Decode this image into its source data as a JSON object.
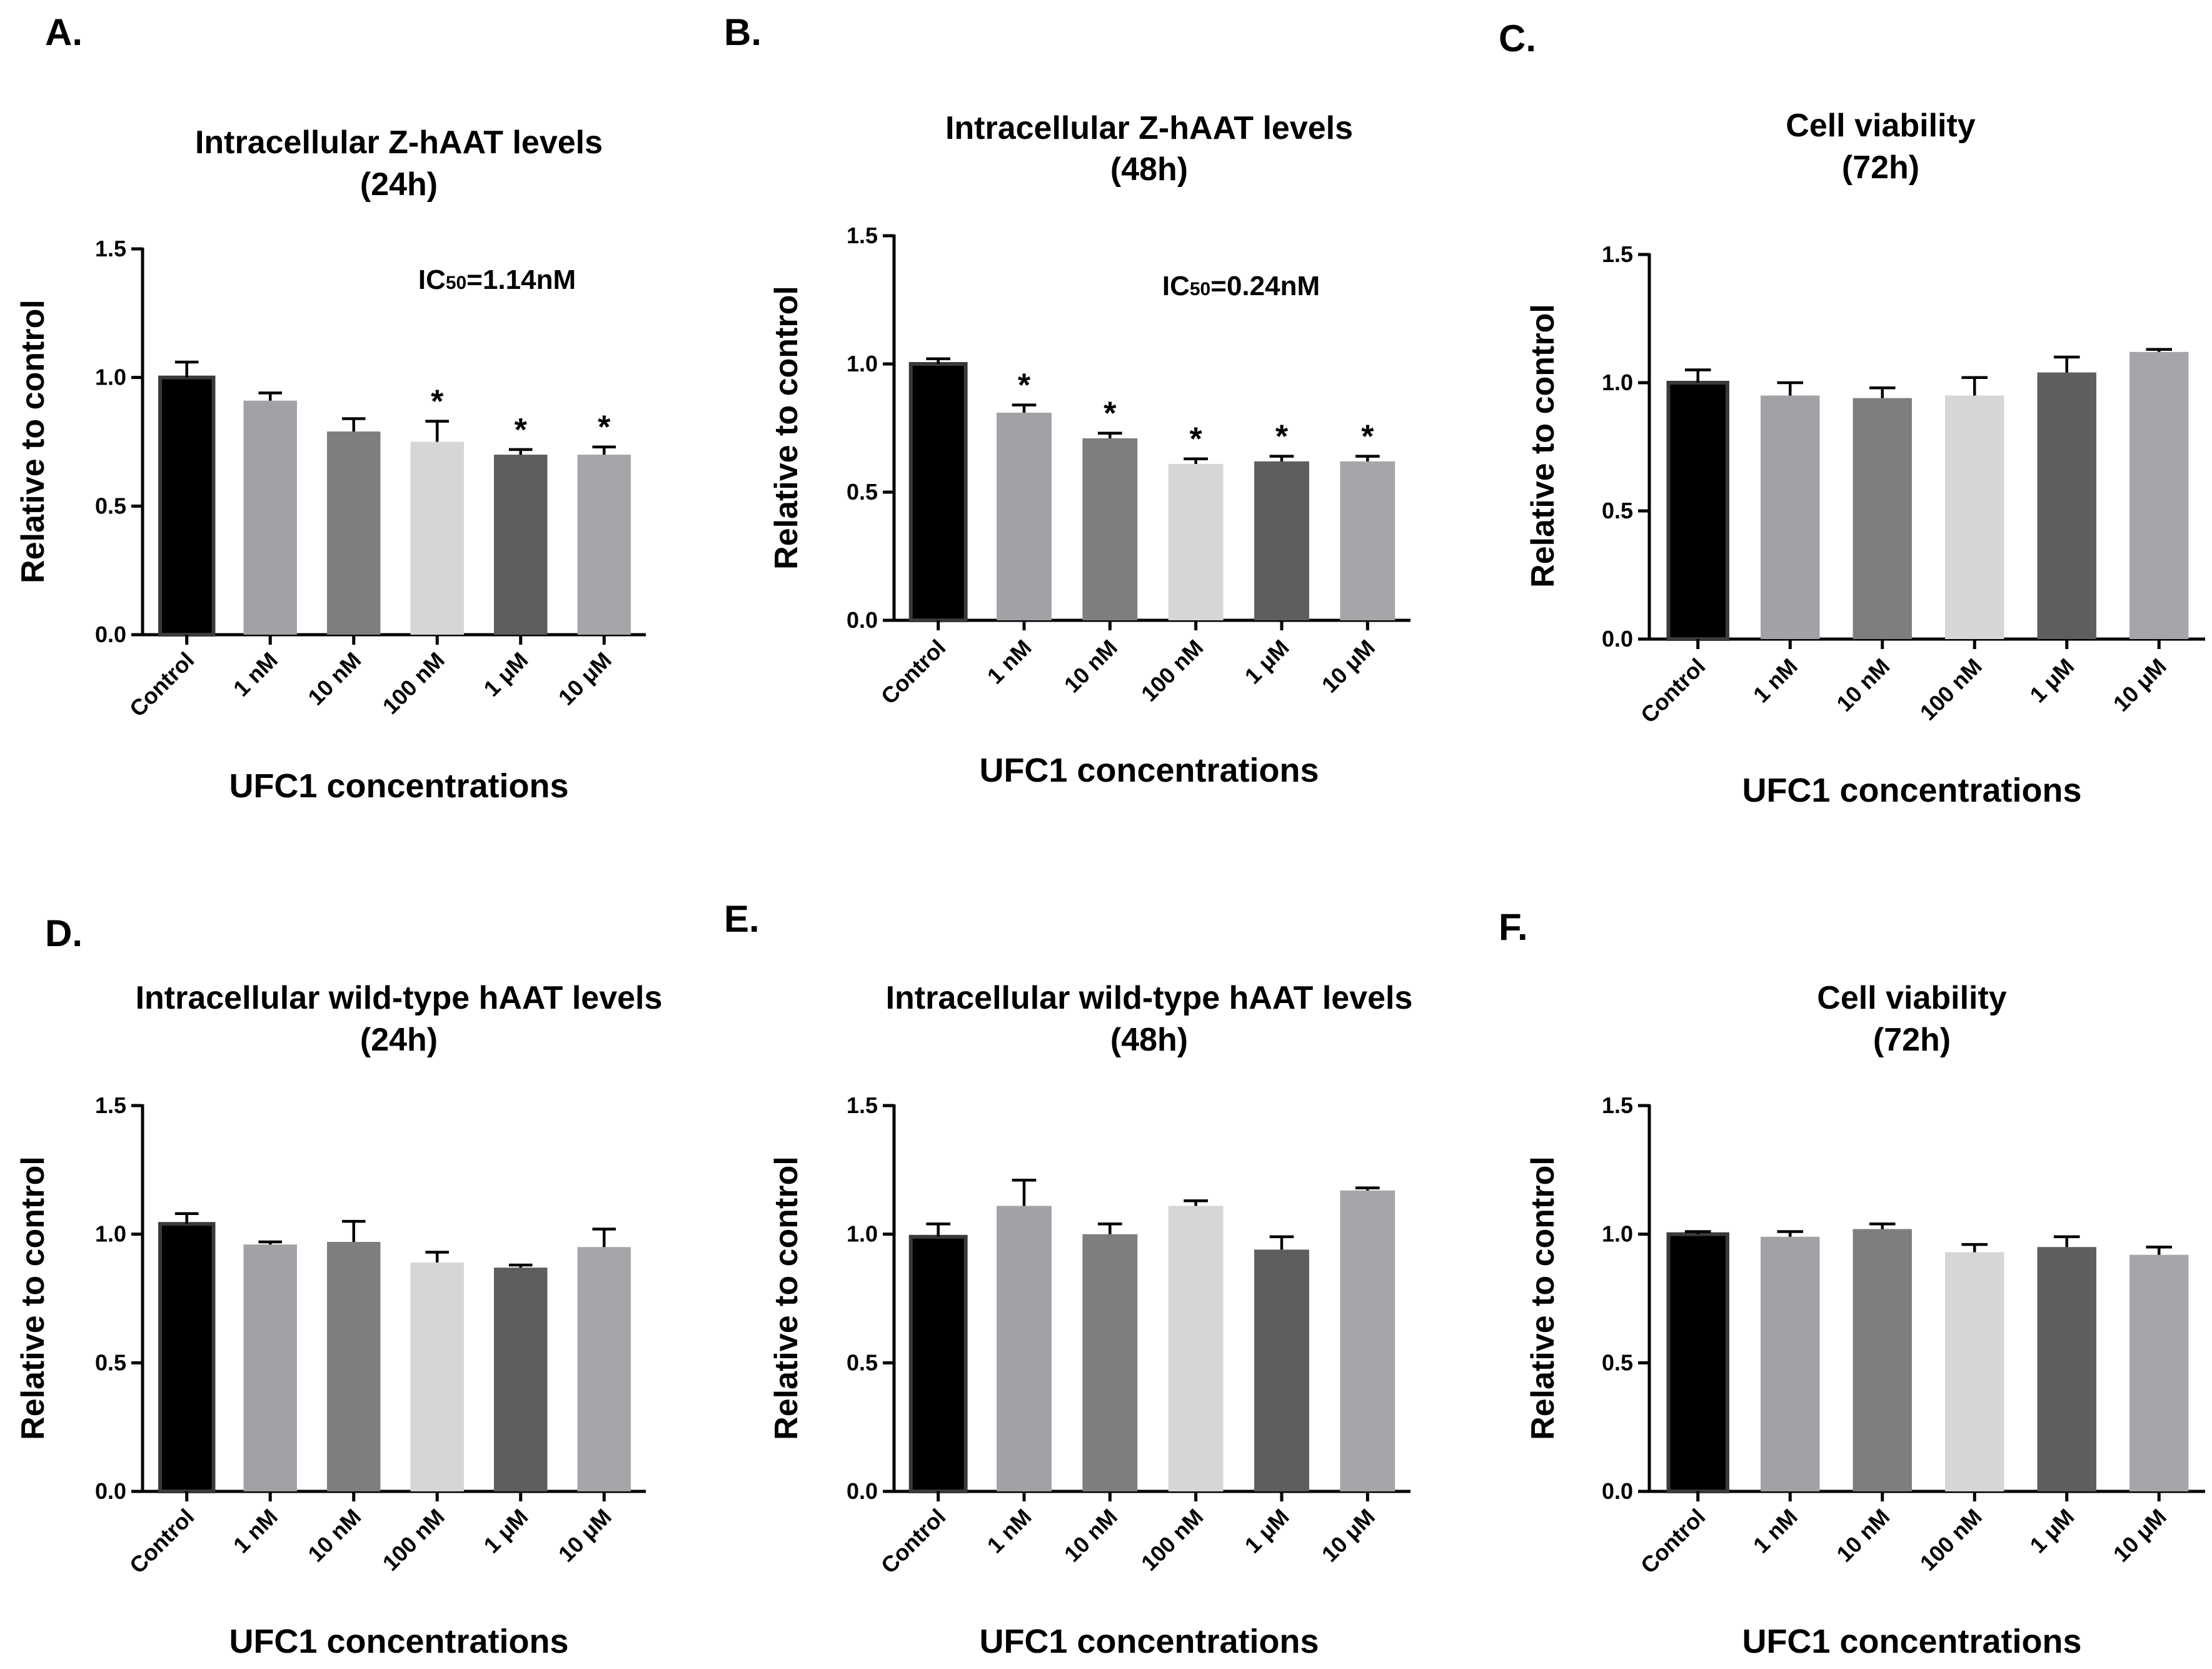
{
  "figure": {
    "palette": {
      "Control": "#000000",
      "1 nM": "#a1a1a6",
      "10 nM": "#7e7e80",
      "100 nM": "#d6d6d6",
      "1 μM": "#5e5e60",
      "10 μM": "#a6a6aa",
      "axis": "#000000"
    }
  },
  "chart_data": [
    {
      "panel": "A.",
      "type": "bar",
      "title": "Intracellular Z-hAAT levels",
      "subtitle": "(24h)",
      "ylabel": "Relative to control",
      "xlabel": "UFC1 concentrations",
      "categories": [
        "Control",
        "1 nM",
        "10 nM",
        "100 nM",
        "1 μM",
        "10 μM"
      ],
      "values": [
        1.0,
        0.91,
        0.79,
        0.75,
        0.7,
        0.7
      ],
      "errors": [
        0.06,
        0.03,
        0.05,
        0.08,
        0.02,
        0.03
      ],
      "significance": [
        "",
        "",
        "",
        "*",
        "*",
        "*"
      ],
      "annotation": {
        "prefix": "IC",
        "sub": "50",
        "suffix": "=1.14nM"
      },
      "ylim": [
        0,
        1.5
      ],
      "yticks": [
        "0.0",
        "0.5",
        "1.0",
        "1.5"
      ]
    },
    {
      "panel": "B.",
      "type": "bar",
      "title": "Intracellular Z-hAAT levels",
      "subtitle": "(48h)",
      "ylabel": "Relative to control",
      "xlabel": "UFC1 concentrations",
      "categories": [
        "Control",
        "1 nM",
        "10 nM",
        "100 nM",
        "1 μM",
        "10 μM"
      ],
      "values": [
        1.0,
        0.81,
        0.71,
        0.61,
        0.62,
        0.62
      ],
      "errors": [
        0.02,
        0.03,
        0.02,
        0.02,
        0.02,
        0.02
      ],
      "significance": [
        "",
        "*",
        "*",
        "*",
        "*",
        "*"
      ],
      "annotation": {
        "prefix": "IC",
        "sub": "50",
        "suffix": "=0.24nM"
      },
      "ylim": [
        0,
        1.5
      ],
      "yticks": [
        "0.0",
        "0.5",
        "1.0",
        "1.5"
      ]
    },
    {
      "panel": "C.",
      "type": "bar",
      "title": "Cell viability",
      "subtitle": "(72h)",
      "ylabel": "Relative to control",
      "xlabel": "UFC1 concentrations",
      "categories": [
        "Control",
        "1 nM",
        "10 nM",
        "100 nM",
        "1 μM",
        "10 μM"
      ],
      "values": [
        1.0,
        0.95,
        0.94,
        0.95,
        1.04,
        1.12
      ],
      "errors": [
        0.05,
        0.05,
        0.04,
        0.07,
        0.06,
        0.01
      ],
      "significance": [
        "",
        "",
        "",
        "",
        "",
        ""
      ],
      "annotation": null,
      "ylim": [
        0,
        1.5
      ],
      "yticks": [
        "0.0",
        "0.5",
        "1.0",
        "1.5"
      ]
    },
    {
      "panel": "D.",
      "type": "bar",
      "title": "Intracellular wild-type hAAT levels",
      "subtitle": "(24h)",
      "ylabel": "Relative to control",
      "xlabel": "UFC1 concentrations",
      "categories": [
        "Control",
        "1 nM",
        "10 nM",
        "100 nM",
        "1 μM",
        "10 μM"
      ],
      "values": [
        1.04,
        0.96,
        0.97,
        0.89,
        0.87,
        0.95
      ],
      "errors": [
        0.04,
        0.01,
        0.08,
        0.04,
        0.01,
        0.07
      ],
      "significance": [
        "",
        "",
        "",
        "",
        "",
        ""
      ],
      "annotation": null,
      "ylim": [
        0,
        1.5
      ],
      "yticks": [
        "0.0",
        "0.5",
        "1.0",
        "1.5"
      ]
    },
    {
      "panel": "E.",
      "type": "bar",
      "title": "Intracellular wild-type hAAT levels",
      "subtitle": "(48h)",
      "ylabel": "Relative to control",
      "xlabel": "UFC1 concentrations",
      "categories": [
        "Control",
        "1 nM",
        "10 nM",
        "100 nM",
        "1 μM",
        "10 μM"
      ],
      "values": [
        0.99,
        1.11,
        1.0,
        1.11,
        0.94,
        1.17
      ],
      "errors": [
        0.05,
        0.1,
        0.04,
        0.02,
        0.05,
        0.01
      ],
      "significance": [
        "",
        "",
        "",
        "",
        "",
        ""
      ],
      "annotation": null,
      "ylim": [
        0,
        1.5
      ],
      "yticks": [
        "0.0",
        "0.5",
        "1.0",
        "1.5"
      ]
    },
    {
      "panel": "F.",
      "type": "bar",
      "title": "Cell viability",
      "subtitle": "(72h)",
      "ylabel": "Relative to control",
      "xlabel": "UFC1 concentrations",
      "categories": [
        "Control",
        "1 nM",
        "10 nM",
        "100 nM",
        "1 μM",
        "10 μM"
      ],
      "values": [
        1.0,
        0.99,
        1.02,
        0.93,
        0.95,
        0.92
      ],
      "errors": [
        0.01,
        0.02,
        0.02,
        0.03,
        0.04,
        0.03
      ],
      "significance": [
        "",
        "",
        "",
        "",
        "",
        ""
      ],
      "annotation": null,
      "ylim": [
        0,
        1.5
      ],
      "yticks": [
        "0.0",
        "0.5",
        "1.0",
        "1.5"
      ]
    }
  ]
}
